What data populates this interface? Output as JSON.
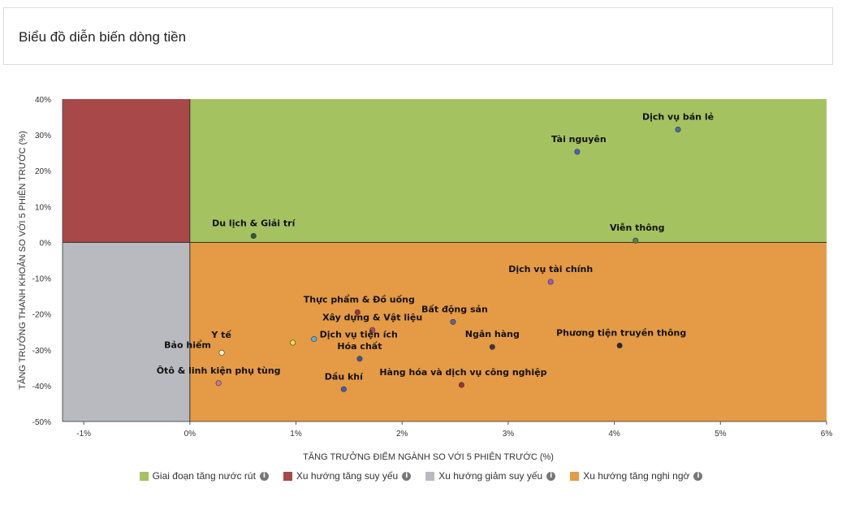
{
  "header": {
    "title": "Biểu đồ diễn biến dòng tiền"
  },
  "chart_data": {
    "type": "scatter",
    "title": "",
    "xlabel": "TĂNG TRƯỞNG ĐIỂM NGÀNH SO VỚI 5 PHIÊN TRƯỚC (%)",
    "ylabel": "TĂNG TRƯỞNG THANH KHOẢN SO VỚI 5 PHIÊN TRƯỚC (%)",
    "xlim": [
      -1.2,
      6.0
    ],
    "ylim": [
      -50,
      40
    ],
    "xticks": [
      -1,
      0,
      1,
      2,
      3,
      4,
      5,
      6
    ],
    "xtick_labels": [
      "-1%",
      "0%",
      "1%",
      "2%",
      "3%",
      "4%",
      "5%",
      "6%"
    ],
    "yticks": [
      40,
      30,
      20,
      10,
      0,
      -10,
      -20,
      -30,
      -40,
      -50
    ],
    "ytick_labels": [
      "40%",
      "30%",
      "20%",
      "10%",
      "0%",
      "-10%",
      "-20%",
      "-30%",
      "-40%",
      "-50%"
    ],
    "quadrants": [
      {
        "name": "Giai đoạn tăng nước rút",
        "color": "#a5c261"
      },
      {
        "name": "Xu hướng tăng suy yếu",
        "color": "#a84848"
      },
      {
        "name": "Xu hướng giảm suy yếu",
        "color": "#b9babf"
      },
      {
        "name": "Xu hướng tăng nghi ngờ",
        "color": "#e59a45"
      }
    ],
    "points": [
      {
        "label": "Dịch vụ bán lẻ",
        "x": 4.6,
        "y": 31.5,
        "color": "#4a6fa8"
      },
      {
        "label": "Tài nguyên",
        "x": 3.65,
        "y": 25.3,
        "color": "#4a5fd0"
      },
      {
        "label": "Du lịch & Giải trí",
        "x": 0.6,
        "y": 1.8,
        "color": "#2e5e2e"
      },
      {
        "label": "Viễn thông",
        "x": 4.2,
        "y": 0.5,
        "color": "#4a8a4a"
      },
      {
        "label": "Dịch vụ tài chính",
        "x": 3.4,
        "y": -11,
        "color": "#9a5ad0"
      },
      {
        "label": "Thực phẩm & Đồ uống",
        "x": 1.58,
        "y": -19.5,
        "color": "#a02f4a"
      },
      {
        "label": "Bất động sản",
        "x": 2.48,
        "y": -22.2,
        "color": "#5a6a8a"
      },
      {
        "label": "Xây dựng & Vật liệu",
        "x": 1.72,
        "y": -24.5,
        "color": "#b04a70"
      },
      {
        "label": "Dịch vụ tiện ích",
        "x": 1.17,
        "y": -27,
        "color": "#60b0e0"
      },
      {
        "label": "Y tế",
        "x": 0.97,
        "y": -28,
        "color": "#f0e040"
      },
      {
        "label": "Ngân hàng",
        "x": 2.85,
        "y": -29.2,
        "color": "#3a3a3a"
      },
      {
        "label": "Phương tiện truyền thông",
        "x": 4.05,
        "y": -28.8,
        "color": "#2a2a2a"
      },
      {
        "label": "Hóa chất",
        "x": 1.6,
        "y": -32.5,
        "color": "#3a55a0"
      },
      {
        "label": "Bảo hiểm",
        "x": 0.3,
        "y": -30.8,
        "color": "#f4f4d0"
      },
      {
        "label": "Ôtô & linh kiện phụ tùng",
        "x": 0.27,
        "y": -39.3,
        "color": "#c07aa0"
      },
      {
        "label": "Dầu khí",
        "x": 1.45,
        "y": -41,
        "color": "#3a60c0"
      },
      {
        "label": "Hàng hóa và dịch vụ công nghiệp",
        "x": 2.56,
        "y": -39.8,
        "color": "#a03040"
      }
    ],
    "legend_position": "bottom",
    "grid": false
  }
}
